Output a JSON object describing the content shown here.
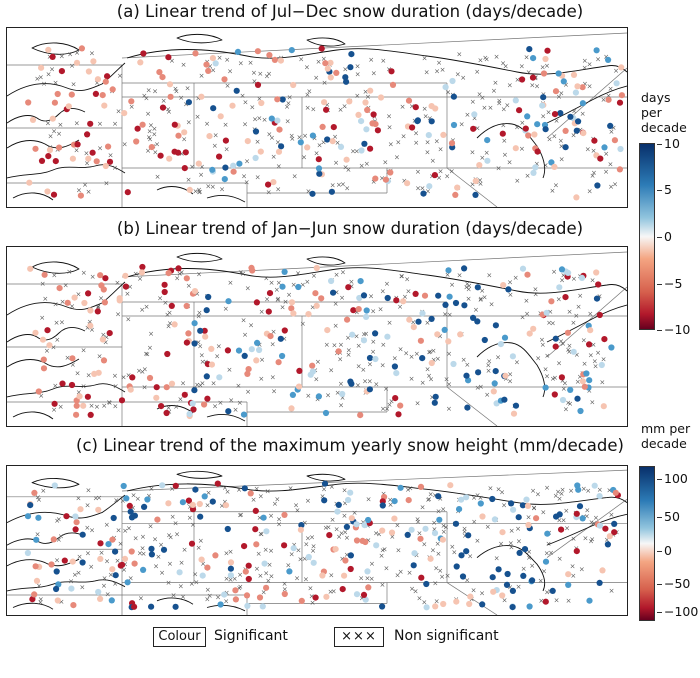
{
  "panels": [
    {
      "title": "(a) Linear trend of Jul−Dec snow duration (days/decade)",
      "variable": "a"
    },
    {
      "title": "(b) Linear trend of Jan−Jun snow duration (days/decade)",
      "variable": "b"
    },
    {
      "title": "(c) Linear trend of the maximum yearly snow height (mm/decade)",
      "variable": "c"
    }
  ],
  "colorbars": {
    "days": {
      "title_line1": "days",
      "title_line2": "per",
      "title_line3": "decade",
      "ticks": [
        "10",
        "5",
        "0",
        "−5",
        "−10"
      ],
      "range": [
        -10,
        10
      ]
    },
    "height": {
      "title_line1": "mm per",
      "title_line2": "decade",
      "ticks": [
        "100",
        "50",
        "0",
        "−50",
        "−100"
      ],
      "range": [
        -120,
        120
      ]
    }
  },
  "legend": {
    "colour_box": "Colour",
    "significant": "Significant",
    "cross_box": "×××",
    "non_significant": "Non significant"
  },
  "colors": {
    "strong_neg": "#b2182b",
    "neg": "#e7897a",
    "weak_neg": "#f6c4b1",
    "weak_pos": "#bcd9ea",
    "pos": "#4a9acb",
    "strong_pos": "#16518f",
    "cross": "#555555",
    "coast": "#111111",
    "grid": "#777777"
  }
}
